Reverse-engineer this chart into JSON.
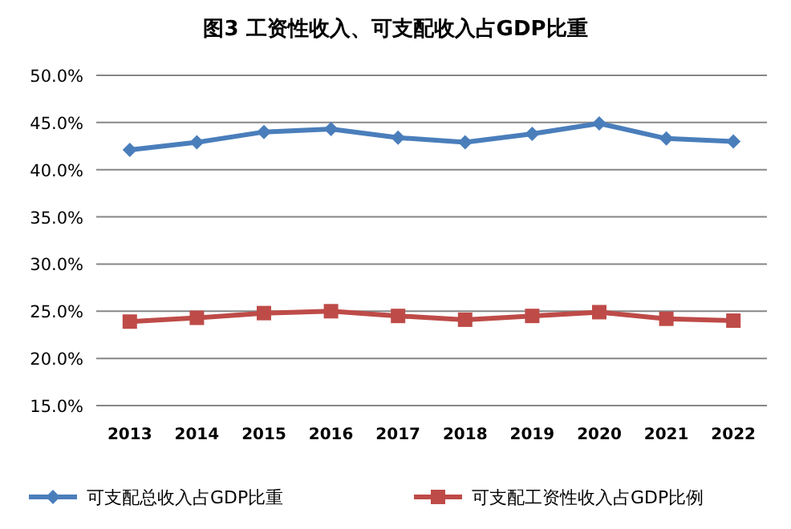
{
  "chart_data": {
    "type": "line",
    "title": "图3 工资性收入、可支配收入占GDP比重",
    "categories": [
      "2013",
      "2014",
      "2015",
      "2016",
      "2017",
      "2018",
      "2019",
      "2020",
      "2021",
      "2022"
    ],
    "series": [
      {
        "name": "可支配总收入占GDP比重",
        "color": "#4a7ebb",
        "marker": "diamond",
        "values": [
          42.1,
          42.9,
          44.0,
          44.3,
          43.4,
          42.9,
          43.8,
          44.9,
          43.3,
          43.0
        ]
      },
      {
        "name": "可支配工资性收入占GDP比例",
        "color": "#be4b48",
        "marker": "square",
        "values": [
          23.9,
          24.3,
          24.8,
          25.0,
          24.5,
          24.1,
          24.5,
          24.9,
          24.2,
          24.0
        ]
      }
    ],
    "ylim": [
      15,
      50
    ],
    "yticks": [
      {
        "value": 15,
        "label": "15.0%"
      },
      {
        "value": 20,
        "label": "20.0%"
      },
      {
        "value": 25,
        "label": "25.0%"
      },
      {
        "value": 30,
        "label": "30.0%"
      },
      {
        "value": 35,
        "label": "35.0%"
      },
      {
        "value": 40,
        "label": "40.0%"
      },
      {
        "value": 45,
        "label": "45.0%"
      },
      {
        "value": 50,
        "label": "50.0%"
      }
    ],
    "grid": "y",
    "legend": "bottom",
    "line_style": "solid"
  }
}
